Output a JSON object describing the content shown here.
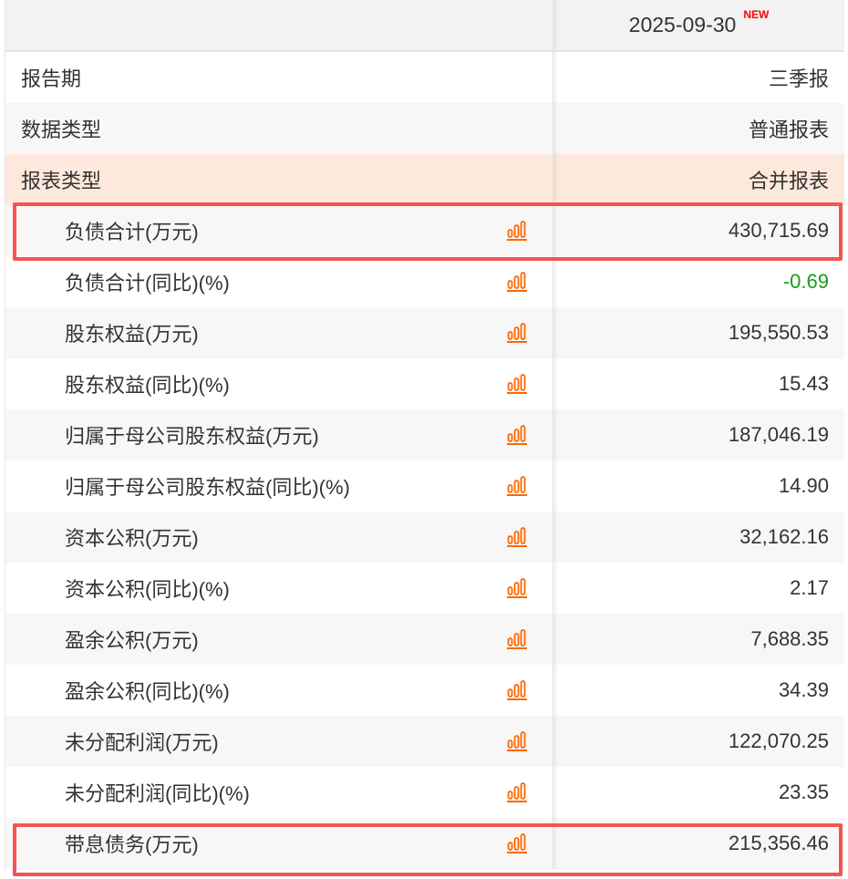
{
  "header": {
    "period": "2025-09-30",
    "badge": "NEW"
  },
  "meta_rows": [
    {
      "label": "报告期",
      "value": "三季报"
    },
    {
      "label": "数据类型",
      "value": "普通报表"
    },
    {
      "label": "报表类型",
      "value": "合并报表"
    }
  ],
  "rows": [
    {
      "label": "负债合计(万元)",
      "value": "430,715.69"
    },
    {
      "label": "负债合计(同比)(%)",
      "value": "-0.69"
    },
    {
      "label": "股东权益(万元)",
      "value": "195,550.53"
    },
    {
      "label": "股东权益(同比)(%)",
      "value": "15.43"
    },
    {
      "label": "归属于母公司股东权益(万元)",
      "value": "187,046.19"
    },
    {
      "label": "归属于母公司股东权益(同比)(%)",
      "value": "14.90"
    },
    {
      "label": "资本公积(万元)",
      "value": "32,162.16"
    },
    {
      "label": "资本公积(同比)(%)",
      "value": "2.17"
    },
    {
      "label": "盈余公积(万元)",
      "value": "7,688.35"
    },
    {
      "label": "盈余公积(同比)(%)",
      "value": "34.39"
    },
    {
      "label": "未分配利润(万元)",
      "value": "122,070.25"
    },
    {
      "label": "未分配利润(同比)(%)",
      "value": "23.35"
    },
    {
      "label": "带息债务(万元)",
      "value": "215,356.46"
    }
  ],
  "colors": {
    "chart_icon": "#ff6600",
    "negative": "#1a9c1a",
    "highlight": "#f55353",
    "new_badge": "#ff0000"
  },
  "highlighted_rows": [
    "负债合计(万元)",
    "带息债务(万元)"
  ]
}
